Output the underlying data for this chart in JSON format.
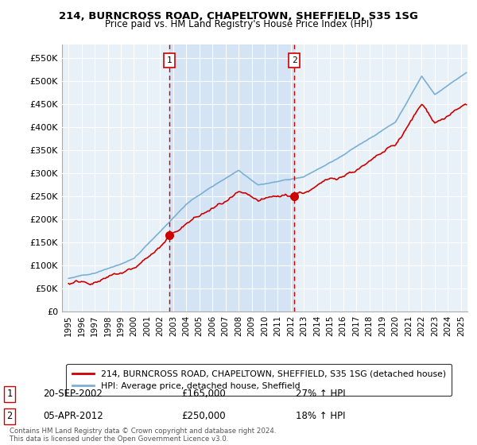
{
  "title1": "214, BURNCROSS ROAD, CHAPELTOWN, SHEFFIELD, S35 1SG",
  "title2": "Price paid vs. HM Land Registry's House Price Index (HPI)",
  "ylabel_ticks": [
    "£0",
    "£50K",
    "£100K",
    "£150K",
    "£200K",
    "£250K",
    "£300K",
    "£350K",
    "£400K",
    "£450K",
    "£500K",
    "£550K"
  ],
  "ytick_vals": [
    0,
    50000,
    100000,
    150000,
    200000,
    250000,
    300000,
    350000,
    400000,
    450000,
    500000,
    550000
  ],
  "ylim": [
    0,
    580000
  ],
  "xlim_left": 1994.5,
  "xlim_right": 2025.5,
  "legend_line1": "214, BURNCROSS ROAD, CHAPELTOWN, SHEFFIELD, S35 1SG (detached house)",
  "legend_line2": "HPI: Average price, detached house, Sheffield",
  "transaction1_label": "1",
  "transaction1_date": "20-SEP-2002",
  "transaction1_price": "£165,000",
  "transaction1_hpi": "27% ↑ HPI",
  "transaction2_label": "2",
  "transaction2_date": "05-APR-2012",
  "transaction2_price": "£250,000",
  "transaction2_hpi": "18% ↑ HPI",
  "footnote": "Contains HM Land Registry data © Crown copyright and database right 2024.\nThis data is licensed under the Open Government Licence v3.0.",
  "line_color_red": "#cc0000",
  "line_color_blue": "#7bafd4",
  "shade_color": "#ddeeff",
  "background_chart": "#e8f0f8",
  "vline1_x": 2002.72,
  "vline2_x": 2012.25,
  "marker1_x": 2002.72,
  "marker1_y": 165000,
  "marker2_x": 2012.25,
  "marker2_y": 250000,
  "xtick_years": [
    1995,
    1996,
    1997,
    1998,
    1999,
    2000,
    2001,
    2002,
    2003,
    2004,
    2005,
    2006,
    2007,
    2008,
    2009,
    2010,
    2011,
    2012,
    2013,
    2014,
    2015,
    2016,
    2017,
    2018,
    2019,
    2020,
    2021,
    2022,
    2023,
    2024,
    2025
  ]
}
